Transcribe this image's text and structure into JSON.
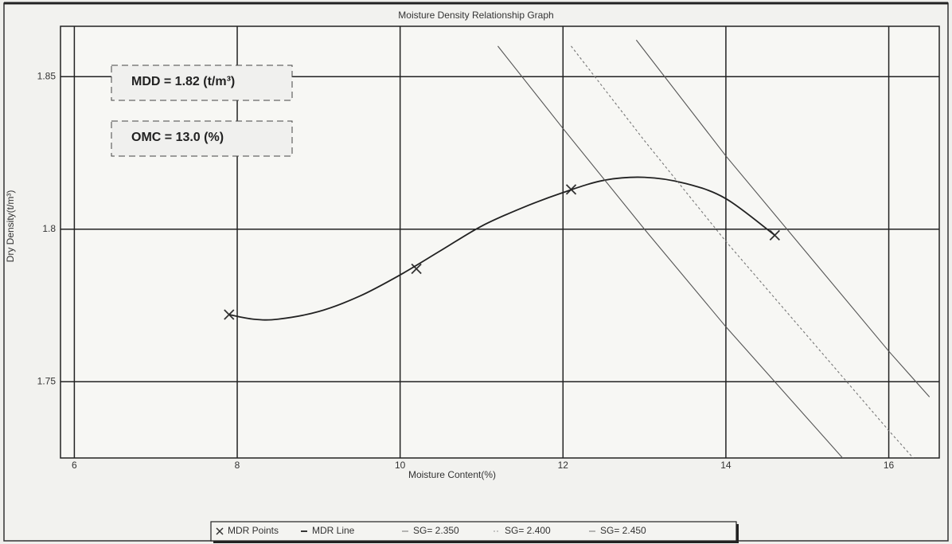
{
  "chart_data": {
    "type": "line",
    "title": "Moisture Density Relationship Graph",
    "x_label": "Moisture Content(%)",
    "y_label": "Dry Density(t/m³)",
    "annotations": [
      "MDD = 1.82 (t/m³)",
      "OMC = 13.0  (%)"
    ],
    "xlim": [
      5.83,
      16.62
    ],
    "xticks": [
      6,
      8,
      10,
      12,
      14,
      16
    ],
    "ylim": [
      1.725,
      1.8665
    ],
    "yticks": [
      1.75,
      1.8,
      1.85
    ],
    "grid": true,
    "legend": "bottom",
    "series": [
      {
        "name": "MDR Points",
        "color": "#333333",
        "style": "markers",
        "x": [
          7.9,
          10.2,
          12.1,
          14.6
        ],
        "values": [
          1.772,
          1.787,
          1.813,
          1.798
        ]
      },
      {
        "name": "MDR Line",
        "color": "#222222",
        "style": "line",
        "x": [
          7.9,
          8.2,
          8.5,
          9.0,
          9.5,
          10.0,
          10.5,
          11.0,
          11.5,
          12.0,
          12.5,
          13.0,
          13.5,
          14.0,
          14.6
        ],
        "values": [
          1.772,
          1.7705,
          1.7705,
          1.773,
          1.778,
          1.785,
          1.793,
          1.801,
          1.807,
          1.812,
          1.816,
          1.817,
          1.815,
          1.81,
          1.798
        ]
      },
      {
        "name": "SG= 2.350",
        "color": "#555555",
        "style": "line",
        "x": [
          11.2,
          12,
          13,
          14,
          15,
          15.5
        ],
        "values": [
          1.86,
          1.833,
          1.8,
          1.768,
          1.738,
          1.723
        ]
      },
      {
        "name": "SG= 2.400",
        "color": "#777777",
        "style": "dotted",
        "x": [
          12.1,
          13,
          14,
          15,
          16,
          16.3
        ],
        "values": [
          1.86,
          1.829,
          1.796,
          1.765,
          1.734,
          1.725
        ]
      },
      {
        "name": "SG= 2.450",
        "color": "#555555",
        "style": "line",
        "x": [
          12.9,
          14,
          15,
          16,
          16.5
        ],
        "values": [
          1.862,
          1.824,
          1.792,
          1.76,
          1.745
        ]
      }
    ]
  }
}
